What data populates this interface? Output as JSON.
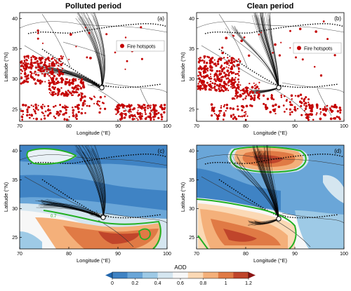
{
  "figure": {
    "col_titles": [
      "Polluted period",
      "Clean period"
    ],
    "panel_letters": [
      "(a)",
      "(b)",
      "(c)",
      "(d)"
    ],
    "xlabel": "Longitude (°E)",
    "ylabel": "Latitude (°N)",
    "x_ticks": [
      "70",
      "80",
      "90",
      "100"
    ],
    "y_ticks": [
      "25",
      "30",
      "35",
      "40"
    ],
    "legend_label": "Fire hotspots",
    "contour_label": "0.7",
    "colorbar_title": "AOD",
    "colorbar_ticks": [
      "0",
      "0.2",
      "0.4",
      "0.6",
      "0.8",
      "1",
      "1.2"
    ]
  },
  "colors": {
    "fire": "#c40000",
    "trajectory": "#000000",
    "contour": "#22b022",
    "aod_scale": [
      "#2166ac",
      "#3f83c4",
      "#6aa6d8",
      "#9ecae6",
      "#d5e6f0",
      "#f7f7f7",
      "#fbd9b5",
      "#f4b07a",
      "#e07a45",
      "#c0452b",
      "#8b1414"
    ]
  },
  "chart_data": [
    {
      "panel": "a",
      "type": "map",
      "layer": "fire hotspots + back trajectories",
      "xlim": [
        70,
        100
      ],
      "ylim": [
        23,
        41
      ]
    },
    {
      "panel": "b",
      "type": "map",
      "layer": "fire hotspots + back trajectories",
      "xlim": [
        70,
        100
      ],
      "ylim": [
        23,
        41
      ]
    },
    {
      "panel": "c",
      "type": "map",
      "layer": "AOD + back trajectories",
      "xlim": [
        70,
        100
      ],
      "ylim": [
        23,
        41
      ],
      "contour_value": 0.7
    },
    {
      "panel": "d",
      "type": "map",
      "layer": "AOD + back trajectories",
      "xlim": [
        70,
        100
      ],
      "ylim": [
        23,
        41
      ],
      "contour_value": 0.7
    },
    {
      "type": "colorbar",
      "label": "AOD",
      "range": [
        0,
        1.2
      ],
      "ticks": [
        0,
        0.2,
        0.4,
        0.6,
        0.8,
        1,
        1.2
      ]
    }
  ]
}
